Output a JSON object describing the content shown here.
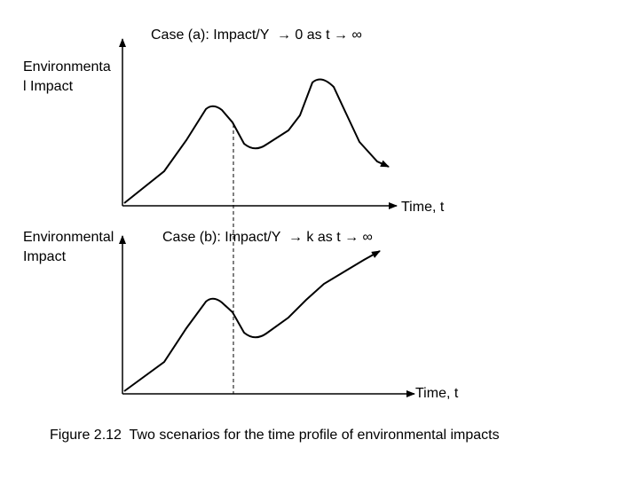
{
  "panel_a": {
    "title": "Case (a): Impact/Y  → 0 as t → ∞",
    "ylabel_line1": "Environmenta",
    "ylabel_line2": "l Impact",
    "xlabel": "Time, t"
  },
  "panel_b": {
    "title": "Case (b): Impact/Y  → k as t → ∞",
    "ylabel_line1": "Environmental",
    "ylabel_line2": "Impact",
    "xlabel": "Time, t"
  },
  "caption": "Figure 2.12  Two scenarios for the time profile of environmental impacts"
}
